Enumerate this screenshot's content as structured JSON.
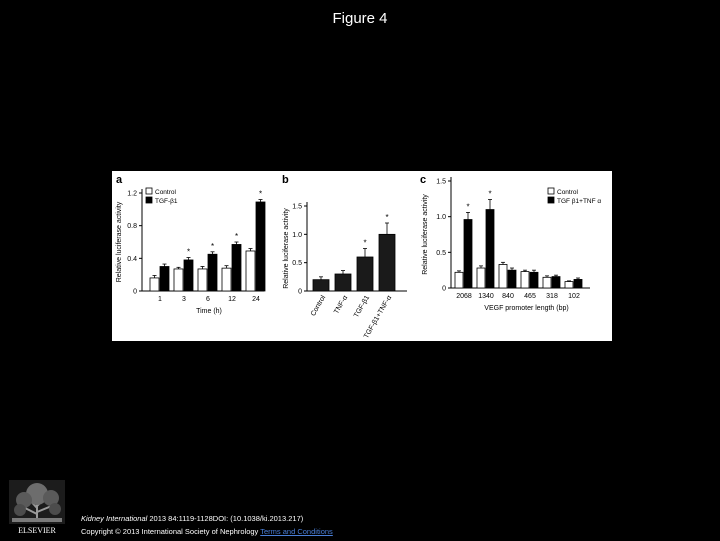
{
  "page": {
    "title": "Figure 4"
  },
  "citation": {
    "journal": "Kidney International",
    "details": " 2013 84:1119-1128DOI: (10.1038/ki.2013.217)",
    "copyright": "Copyright © 2013 International Society of Nephrology ",
    "terms_link": "Terms and Conditions"
  },
  "logo": {
    "text": "ELSEVIER"
  },
  "chart_data": [
    {
      "panel": "a",
      "type": "bar",
      "categories": [
        "1",
        "3",
        "6",
        "12",
        "24"
      ],
      "xlabel": "Time (h)",
      "ylabel": "Relative luciferase activity",
      "ylim": [
        0,
        1.2
      ],
      "yticks": [
        "0",
        "0.4",
        "0.8",
        "1.2"
      ],
      "series": [
        {
          "name": "Control",
          "color": "#ffffff",
          "values": [
            0.16,
            0.27,
            0.27,
            0.28,
            0.49
          ],
          "errors": [
            0.03,
            0.02,
            0.03,
            0.03,
            0.03
          ]
        },
        {
          "name": "TGF-β1",
          "color": "#000000",
          "values": [
            0.3,
            0.38,
            0.45,
            0.57,
            1.09
          ],
          "errors": [
            0.03,
            0.03,
            0.03,
            0.03,
            0.03
          ]
        }
      ],
      "significance": [
        {
          "series": 1,
          "index": 1,
          "label": "*"
        },
        {
          "series": 1,
          "index": 2,
          "label": "*"
        },
        {
          "series": 1,
          "index": 3,
          "label": "*"
        },
        {
          "series": 1,
          "index": 4,
          "label": "*"
        }
      ],
      "legend": "top-left"
    },
    {
      "panel": "b",
      "type": "bar",
      "categories": [
        "Control",
        "TNF-α",
        "TGF-β1",
        "TGF-β1+TNF-α"
      ],
      "xlabel": "",
      "ylabel": "Relative luciferase activity",
      "ylim": [
        0,
        1.5
      ],
      "yticks": [
        "0",
        "0.5",
        "1.0",
        "1.5"
      ],
      "series": [
        {
          "values": [
            0.2,
            0.3,
            0.6,
            1.0
          ],
          "errors": [
            0.05,
            0.06,
            0.15,
            0.2
          ],
          "color": "#1a1a1a"
        }
      ],
      "significance": [
        {
          "series": 0,
          "index": 2,
          "label": "*"
        },
        {
          "series": 0,
          "index": 3,
          "label": "*"
        }
      ]
    },
    {
      "panel": "c",
      "type": "bar",
      "categories": [
        "2068",
        "1340",
        "840",
        "465",
        "318",
        "102"
      ],
      "xlabel": "VEGF promoter length (bp)",
      "ylabel": "Relative luciferase activity",
      "ylim": [
        0,
        1.5
      ],
      "yticks": [
        "0",
        "0.5",
        "1.0",
        "1.5"
      ],
      "series": [
        {
          "name": "Control",
          "color": "#ffffff",
          "values": [
            0.22,
            0.28,
            0.33,
            0.23,
            0.15,
            0.09
          ],
          "errors": [
            0.02,
            0.03,
            0.03,
            0.02,
            0.02,
            0.01
          ]
        },
        {
          "name": "TGF β1+TNF α",
          "color": "#000000",
          "values": [
            0.96,
            1.1,
            0.25,
            0.22,
            0.16,
            0.12
          ],
          "errors": [
            0.1,
            0.14,
            0.03,
            0.03,
            0.02,
            0.02
          ]
        }
      ],
      "significance": [
        {
          "series": 1,
          "index": 0,
          "label": "*"
        },
        {
          "series": 1,
          "index": 1,
          "label": "*"
        }
      ],
      "legend": "top-right"
    }
  ]
}
